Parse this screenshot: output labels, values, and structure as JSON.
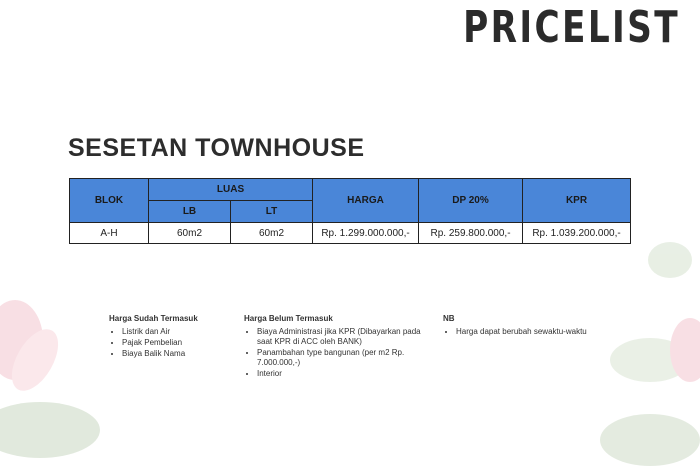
{
  "header": {
    "title": "PRICELIST"
  },
  "subtitle": "SESETAN TOWNHOUSE",
  "table": {
    "headers": [
      "BLOK",
      "LUAS",
      "HARGA",
      "DP 20%",
      "KPR"
    ],
    "subheaders": [
      "LB",
      "LT"
    ],
    "rows": [
      [
        "A-H",
        "60m2",
        "60m2",
        "Rp. 1.299.000.000,-",
        "Rp. 259.800.000,-",
        "Rp. 1.039.200.000,-"
      ]
    ]
  },
  "notes": [
    {
      "title": "Harga Sudah Termasuk",
      "items": [
        "Listrik dan Air",
        "Pajak Pembelian",
        "Biaya Balik Nama"
      ]
    },
    {
      "title": "Harga Belum Termasuk",
      "items": [
        "Biaya Administrasi jika KPR (Dibayarkan pada saat KPR di ACC oleh BANK)",
        "Panambahan type bangunan (per m2 Rp. 7.000.000,-)",
        "Interior"
      ]
    },
    {
      "title": "NB",
      "items": [
        "Harga dapat berubah sewaktu-waktu"
      ]
    }
  ]
}
